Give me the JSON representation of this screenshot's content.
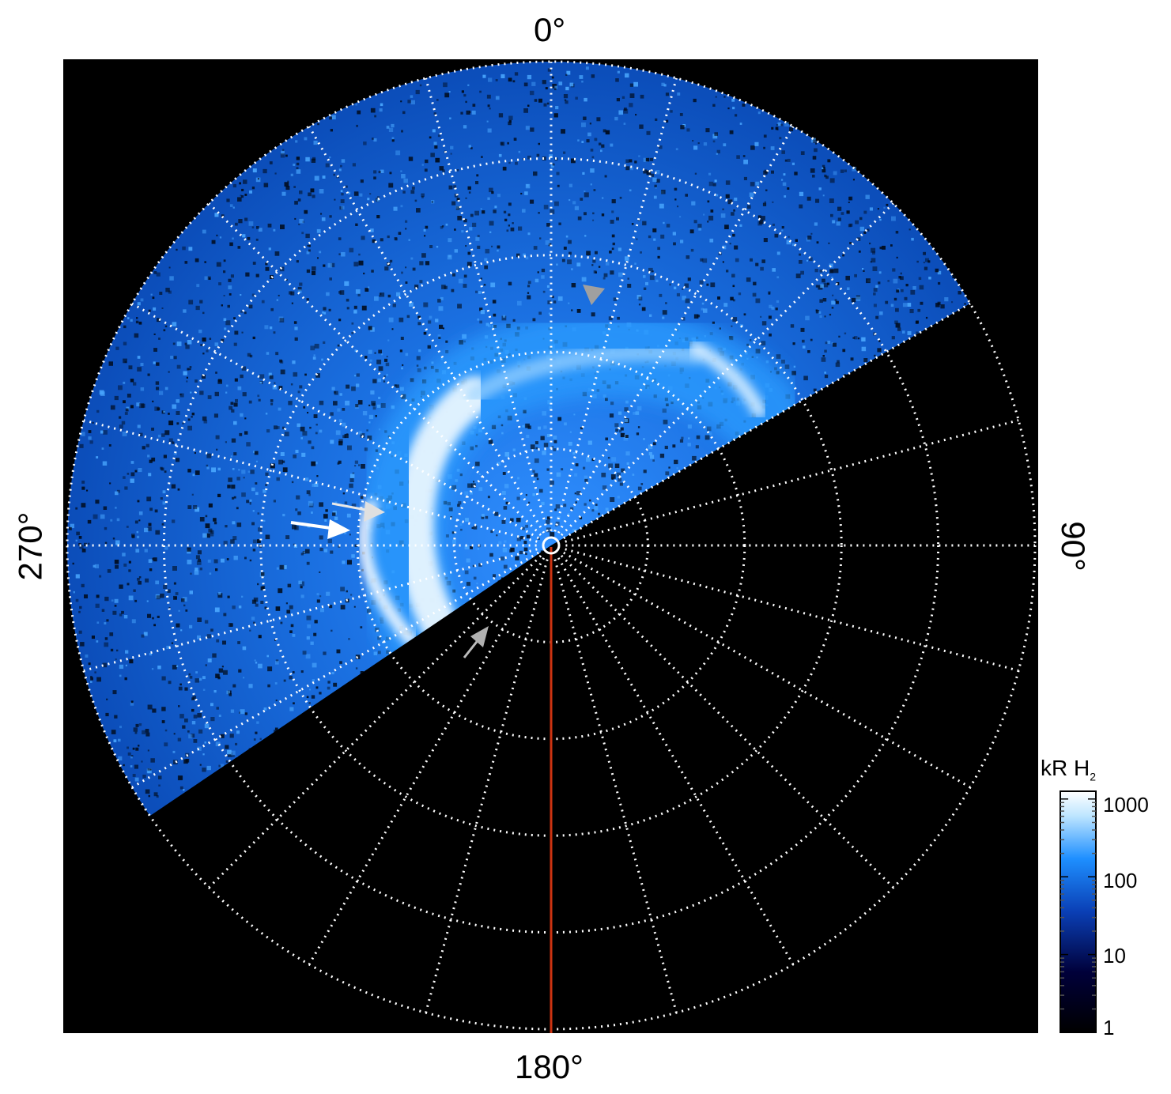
{
  "projection": "polar",
  "angle_labels": {
    "top": "0°",
    "right": "90°",
    "bottom": "180°",
    "left": "270°"
  },
  "grid": {
    "style": "dotted",
    "color": "#ffffff",
    "rings": 5,
    "spokes_deg": 15
  },
  "colorbar": {
    "title_main": "kR H",
    "title_sub": "2",
    "scale": "log",
    "ticks": [
      "1",
      "10",
      "100",
      "1000"
    ],
    "tick_values": [
      1,
      10,
      100,
      1000
    ],
    "colors": [
      "#000000",
      "#00003a",
      "#0a3fb5",
      "#1e8fff",
      "#bfe6ff",
      "#ffffff"
    ]
  },
  "colors": {
    "background": "#000000",
    "meridian_line": "#cc3311",
    "arrow_white": "#ffffff",
    "arrow_gray": "#a0a0a0"
  }
}
